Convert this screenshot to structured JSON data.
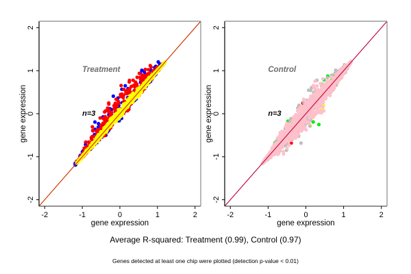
{
  "chart_data": [
    {
      "type": "scatter",
      "title": "Treatment",
      "annotation": "n=3",
      "xlabel": "gene expression",
      "ylabel": "gene expression",
      "xlim": [
        -2.15,
        2.15
      ],
      "ylim": [
        -2.15,
        2.15
      ],
      "xticks": [
        -2,
        -1,
        0,
        1,
        2
      ],
      "yticks": [
        -2,
        -1,
        0,
        1,
        2
      ],
      "grid": false,
      "reference_lines": [
        {
          "name": "identity-line",
          "slope": 1,
          "intercept": 0,
          "colors": [
            "#e8a000",
            "#cc2200"
          ]
        }
      ],
      "series": [
        {
          "name": "replicate-blue",
          "color": "#0000ff",
          "cloud": {
            "x_range": [
              -1.2,
              1.2
            ],
            "spread_above": 0.55,
            "spread_below": 0.12,
            "count": 260
          }
        },
        {
          "name": "replicate-red",
          "color": "#ff0000",
          "cloud": {
            "x_range": [
              -1.15,
              1.15
            ],
            "spread_above": 0.5,
            "spread_below": 0.1,
            "count": 520
          }
        },
        {
          "name": "replicate-yellow",
          "color": "#ffff00",
          "cloud": {
            "x_range": [
              -1.15,
              1.2
            ],
            "spread_above": 0.12,
            "spread_below": 0.08,
            "count": 700
          }
        }
      ]
    },
    {
      "type": "scatter",
      "title": "Control",
      "annotation": "n=3",
      "xlabel": "gene expression",
      "ylabel": "gene expression",
      "xlim": [
        -2.15,
        2.15
      ],
      "ylim": [
        -2.15,
        2.15
      ],
      "xticks": [
        -2,
        -1,
        0,
        1,
        2
      ],
      "yticks": [
        -2,
        -1,
        0,
        1,
        2
      ],
      "grid": false,
      "reference_lines": [
        {
          "name": "identity-line",
          "slope": 1,
          "intercept": 0,
          "colors": [
            "#66cc66",
            "#cc66cc",
            "#cc0033"
          ]
        }
      ],
      "series": [
        {
          "name": "replicate-red",
          "color": "#ff0000",
          "cloud": {
            "x_range": [
              -0.8,
              0.5
            ],
            "spread_above": 0.35,
            "spread_below": 0.35,
            "count": 10
          }
        },
        {
          "name": "replicate-green",
          "color": "#00ee00",
          "cloud": {
            "x_range": [
              -1.0,
              1.1
            ],
            "spread_above": 0.45,
            "spread_below": 0.45,
            "count": 90
          }
        },
        {
          "name": "replicate-yellow",
          "color": "#ffff00",
          "cloud": {
            "x_range": [
              -1.0,
              1.0
            ],
            "spread_above": 0.35,
            "spread_below": 0.35,
            "count": 60
          }
        },
        {
          "name": "replicate-gray",
          "color": "#bebebe",
          "cloud": {
            "x_range": [
              -1.1,
              1.2
            ],
            "spread_above": 0.38,
            "spread_below": 0.38,
            "count": 380
          }
        },
        {
          "name": "replicate-pink",
          "color": "#ffc0cb",
          "cloud": {
            "x_range": [
              -1.15,
              1.2
            ],
            "spread_above": 0.3,
            "spread_below": 0.3,
            "count": 900
          }
        }
      ]
    }
  ],
  "captions": {
    "main": "Average R-squared: Treatment (0.99), Control (0.97)",
    "sub": "Genes detected at least one chip were plotted (detection p-value < 0.01)"
  },
  "r_squared": {
    "Treatment": 0.99,
    "Control": 0.97
  }
}
